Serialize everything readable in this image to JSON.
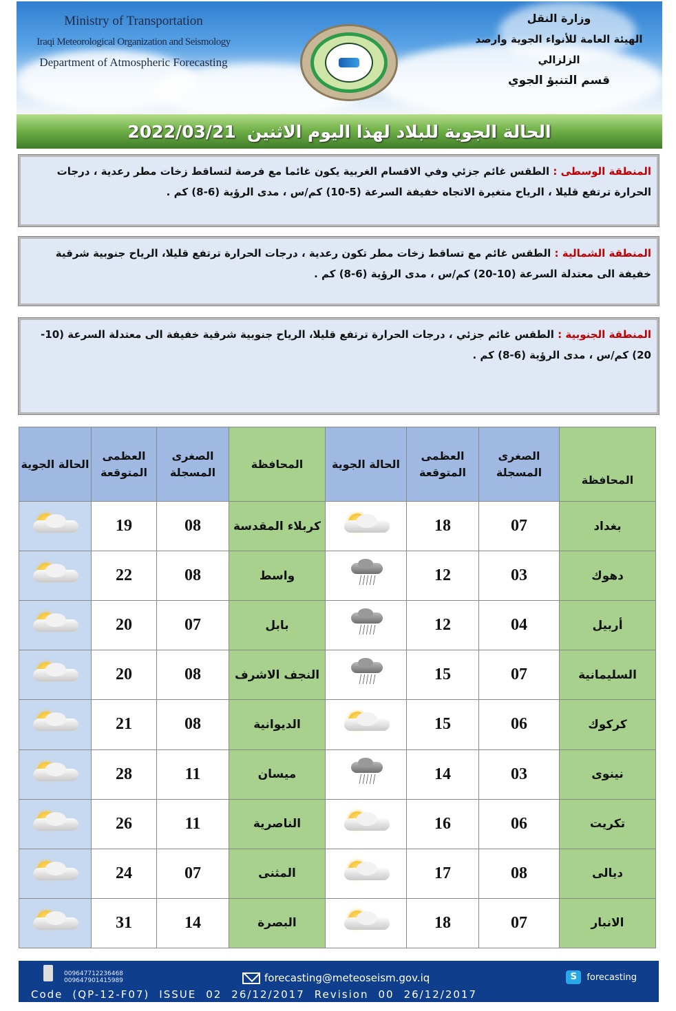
{
  "header": {
    "en_lines": [
      "Ministry of Transportation",
      "Iraqi Meteorological Organization and Seismology",
      "Department of Atmospheric Forecasting"
    ],
    "ar_lines": [
      "وزارة النقل",
      "الهيئة العامة للأنواء الجوية وارصد الزلزالي",
      "قسم التنبؤ الجوي"
    ]
  },
  "title": {
    "text": "الحالة الجوية للبلاد لهذا اليوم الاثنين",
    "date": "2022/03/21"
  },
  "regions": [
    {
      "label": "المنطقة الوسطى :",
      "text": "الطقس غائم جزئي وفي الاقسام الغربية يكون غائما مع فرصة لتساقط زخات مطر رعدية ، درجات الحرارة ترتفع قليلا ، الرياح  متغيرة الاتجاه خفيفة السرعة (5-10) كم/س ، مدى الرؤية (6-8) كم ."
    },
    {
      "label": "المنطقة الشمالية :",
      "text": "الطقس غائم مع تساقط زخات مطر تكون رعدية ، درجات الحرارة ترتفع قليلا، الرياح جنوبية شرقية خفيفة الى معتدلة السرعة (10-20) كم/س ، مدى الرؤية (6-8) كم ."
    },
    {
      "label": "المنطقة الجنوبية :",
      "text": "الطقس غائم جزئي ، درجات الحرارة ترتفع قليلا، الرياح جنوبية شرقية خفيفة الى معتدلة السرعة (10-20) كم/س ، مدى الرؤية (6-8) كم ."
    }
  ],
  "table": {
    "headers": {
      "province": "المحافظة",
      "min": "الصغرى المسجلة",
      "max": "العظمى المتوقعة",
      "condition": "الحالة الجوية"
    },
    "rows": [
      {
        "r": {
          "p": "بغداد",
          "min": "07",
          "max": "18",
          "icon": "partly-cloudy"
        },
        "l": {
          "p": "كربلاء المقدسة",
          "min": "08",
          "max": "19",
          "icon": "partly-cloudy"
        }
      },
      {
        "r": {
          "p": "دهوك",
          "min": "03",
          "max": "12",
          "icon": "rain"
        },
        "l": {
          "p": "واسط",
          "min": "08",
          "max": "22",
          "icon": "partly-cloudy"
        }
      },
      {
        "r": {
          "p": "أربيل",
          "min": "04",
          "max": "12",
          "icon": "rain"
        },
        "l": {
          "p": "بابل",
          "min": "07",
          "max": "20",
          "icon": "partly-cloudy"
        }
      },
      {
        "r": {
          "p": "السليمانية",
          "min": "07",
          "max": "15",
          "icon": "rain"
        },
        "l": {
          "p": "النجف الاشرف",
          "min": "08",
          "max": "20",
          "icon": "partly-cloudy"
        }
      },
      {
        "r": {
          "p": "كركوك",
          "min": "06",
          "max": "15",
          "icon": "partly-cloudy"
        },
        "l": {
          "p": "الديوانية",
          "min": "08",
          "max": "21",
          "icon": "partly-cloudy"
        }
      },
      {
        "r": {
          "p": "نينوى",
          "min": "03",
          "max": "14",
          "icon": "rain"
        },
        "l": {
          "p": "ميسان",
          "min": "11",
          "max": "28",
          "icon": "partly-cloudy"
        }
      },
      {
        "r": {
          "p": "تكريت",
          "min": "06",
          "max": "16",
          "icon": "partly-cloudy"
        },
        "l": {
          "p": "الناصرية",
          "min": "11",
          "max": "26",
          "icon": "partly-cloudy"
        }
      },
      {
        "r": {
          "p": "ديالى",
          "min": "08",
          "max": "17",
          "icon": "partly-cloudy"
        },
        "l": {
          "p": "المثنى",
          "min": "07",
          "max": "24",
          "icon": "partly-cloudy"
        }
      },
      {
        "r": {
          "p": "الانبار",
          "min": "07",
          "max": "18",
          "icon": "partly-cloudy"
        },
        "l": {
          "p": "البصرة",
          "min": "14",
          "max": "31",
          "icon": "partly-cloudy"
        }
      }
    ]
  },
  "footer": {
    "phones": [
      "009647712236468",
      "009647901415989"
    ],
    "email": "forecasting@meteoseism.gov.iq",
    "skype": "forecasting",
    "code_parts": [
      "Code",
      "(QP-12-F07)",
      "ISSUE",
      "02",
      "26/12/2017",
      "Revision",
      "00",
      "26/12/2017"
    ]
  },
  "colors": {
    "green": "#a9d18e",
    "blue": "#9fb9e3",
    "footer": "#0f3e8c",
    "region_label": "#c00000"
  }
}
